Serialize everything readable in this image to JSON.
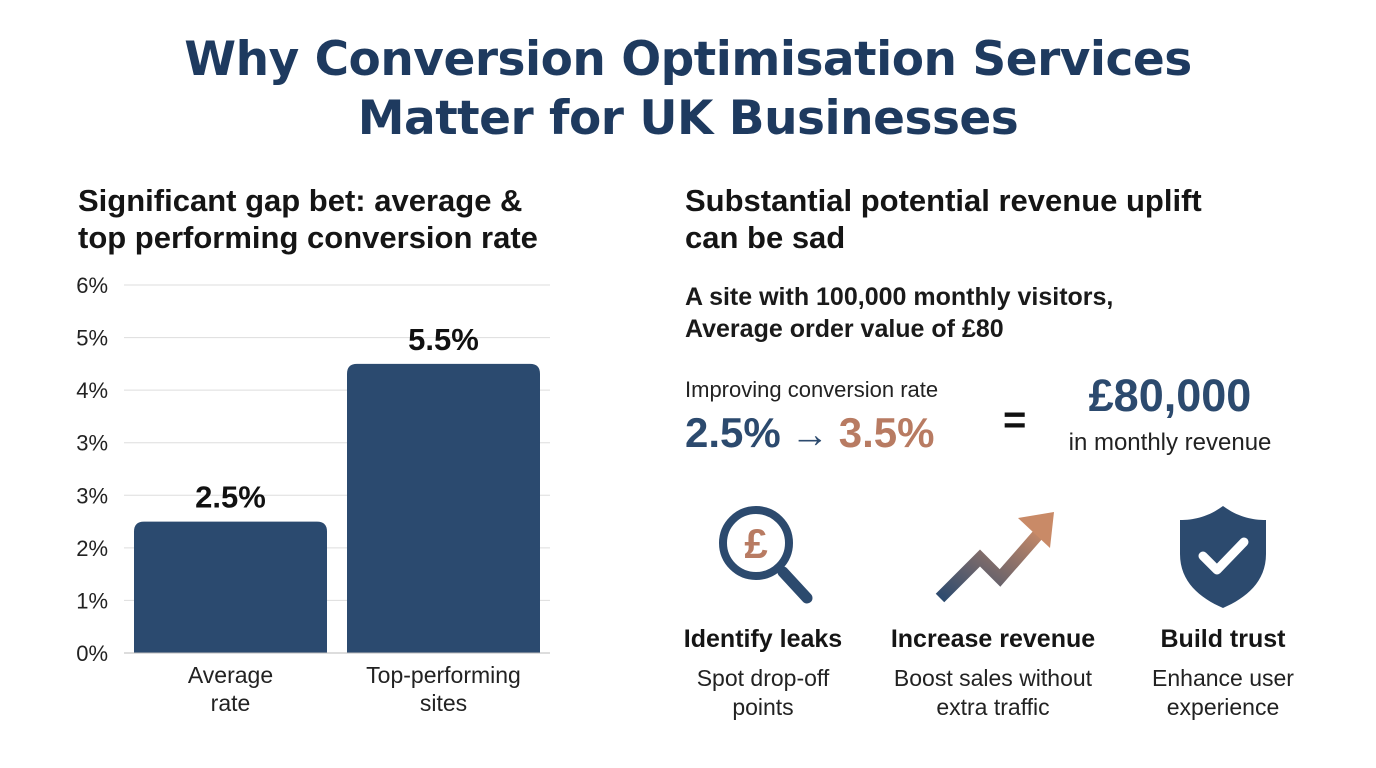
{
  "title": {
    "line1": "Why Conversion Optimisation Services",
    "line2": "Matter for UK Businesses"
  },
  "left_heading": {
    "line1": "Significant gap bet: average &",
    "line2": "top performing conversion rate"
  },
  "chart_data": {
    "type": "bar",
    "categories": [
      [
        "Average",
        "rate"
      ],
      [
        "Top-performing",
        "sites"
      ]
    ],
    "values": [
      2.5,
      5.5
    ],
    "data_labels": [
      "2.5%",
      "5.5%"
    ],
    "y_tick_labels": [
      "0%",
      "1%",
      "2%",
      "3%",
      "3%",
      "4%",
      "5%",
      "6%"
    ],
    "ylim": [
      0,
      7
    ],
    "grid": true,
    "color": "#2b4a6f"
  },
  "right_heading": {
    "line1": "Substantial potential revenue uplift",
    "line2": "can be sad"
  },
  "site_info": {
    "line1": "A site with 100,000 monthly visitors,",
    "line2": "Average order value of £80"
  },
  "improvement": {
    "label": "Improving conversion rate",
    "from": "2.5%",
    "arrow": "→",
    "to": "3.5%",
    "equals": "=",
    "value": "£80,000",
    "caption": "in monthly revenue"
  },
  "features": [
    {
      "icon": "pound-magnifier-icon",
      "title": "Identify leaks",
      "desc_line1": "Spot drop-off",
      "desc_line2": "points"
    },
    {
      "icon": "trend-up-arrow-icon",
      "title": "Increase revenue",
      "desc_line1": "Boost sales without",
      "desc_line2": "extra traffic"
    },
    {
      "icon": "shield-check-icon",
      "title": "Build trust",
      "desc_line1": "Enhance user",
      "desc_line2": "experience"
    }
  ],
  "colors": {
    "navy": "#2c4a6e",
    "title": "#1e3a5f",
    "accent": "#b87b62"
  },
  "icon_pound_glyph": "£"
}
